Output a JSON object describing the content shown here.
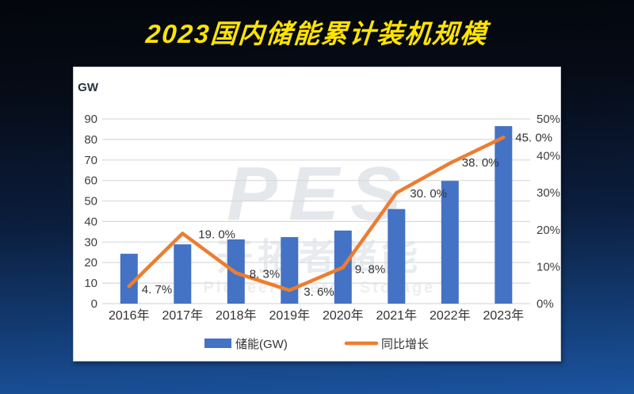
{
  "title": "2023国内储能累计装机规模",
  "title_color": "#ffe400",
  "watermark": {
    "line1": "PES",
    "line2": "开拓者储能",
    "line3": "Pioneer Energy Storage"
  },
  "chart_data": {
    "type": "bar+line",
    "title": "2023国内储能累计装机规模",
    "categories": [
      "2016年",
      "2017年",
      "2018年",
      "2019年",
      "2020年",
      "2021年",
      "2022年",
      "2023年"
    ],
    "series": [
      {
        "name": "储能(GW)",
        "type": "bar",
        "axis": "left",
        "values": [
          24.3,
          28.9,
          31.3,
          32.4,
          35.6,
          46.1,
          59.8,
          86.5
        ],
        "color": "#4472c4"
      },
      {
        "name": "同比增长",
        "type": "line",
        "axis": "right",
        "values": [
          4.7,
          19.0,
          8.3,
          3.6,
          9.8,
          30.0,
          38.0,
          45.0
        ],
        "color": "#ed7d31",
        "labels": [
          "4. 7%",
          "19. 0%",
          "8. 3%",
          "3. 6%",
          "9. 8%",
          "30. 0%",
          "38. 0%",
          "45. 0%"
        ],
        "label_offsets": [
          [
            16,
            9
          ],
          [
            20,
            6
          ],
          [
            17,
            6
          ],
          [
            18,
            7
          ],
          [
            15,
            7
          ],
          [
            17,
            6
          ],
          [
            15,
            4
          ],
          [
            15,
            5
          ]
        ]
      }
    ],
    "left_axis": {
      "unit": "GW",
      "min": 0,
      "max": 90,
      "step": 10,
      "ticks": [
        "0",
        "10",
        "20",
        "30",
        "40",
        "50",
        "60",
        "70",
        "80",
        "90"
      ]
    },
    "right_axis": {
      "min": 0,
      "max": 50,
      "step": 10,
      "ticks": [
        "0%",
        "10%",
        "20%",
        "30%",
        "40%",
        "50%"
      ]
    },
    "grid": "horizontal",
    "gridline_color": "#d9d9d9",
    "tick_color": "#3f3f3f",
    "label_color": "#333333",
    "legend_position": "bottom"
  }
}
